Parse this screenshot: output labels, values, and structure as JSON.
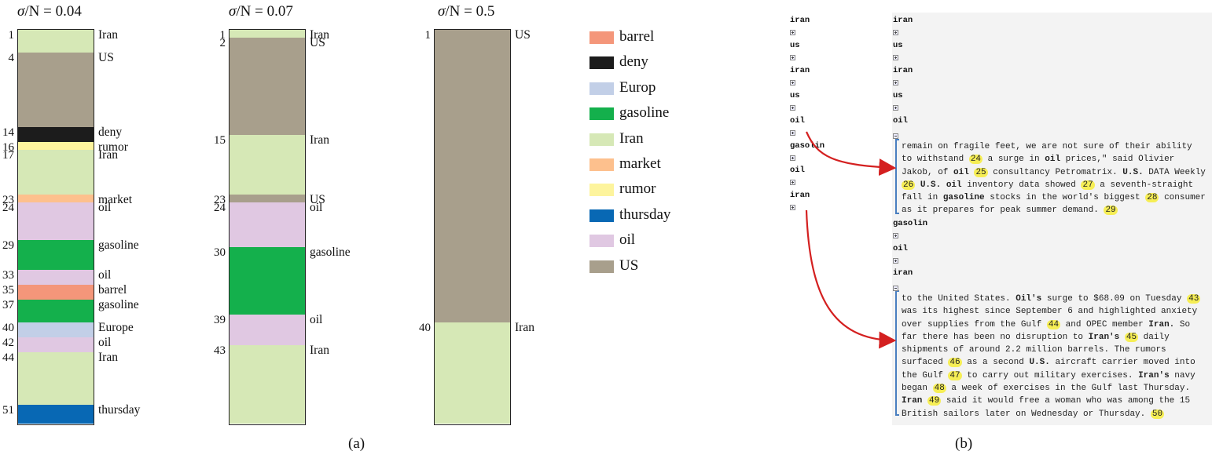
{
  "panel_a": {
    "columns": [
      {
        "title_sym": "σ",
        "title_rest": "/N = 0.04",
        "segments": [
          {
            "start": 1,
            "label": "Iran",
            "color": "#d6e8b6"
          },
          {
            "start": 4,
            "label": "US",
            "color": "#a89f8c"
          },
          {
            "start": 14,
            "label": "deny",
            "color": "#1c1c1c"
          },
          {
            "start": 16,
            "label": "rumor",
            "color": "#fdf49d"
          },
          {
            "start": 17,
            "label": "Iran",
            "color": "#d6e8b6"
          },
          {
            "start": 23,
            "label": "market",
            "color": "#fdc08d"
          },
          {
            "start": 24,
            "label": "oil",
            "color": "#e0c8e2"
          },
          {
            "start": 29,
            "label": "gasoline",
            "color": "#14b04c"
          },
          {
            "start": 33,
            "label": "oil",
            "color": "#e0c8e2"
          },
          {
            "start": 35,
            "label": "barrel",
            "color": "#f4967a"
          },
          {
            "start": 37,
            "label": "gasoline",
            "color": "#14b04c"
          },
          {
            "start": 40,
            "label": "Europe",
            "color": "#c2cfe7"
          },
          {
            "start": 42,
            "label": "oil",
            "color": "#e0c8e2"
          },
          {
            "start": 44,
            "label": "Iran",
            "color": "#d6e8b6"
          },
          {
            "start": 51,
            "label": "thursday",
            "color": "#0868b4"
          }
        ]
      },
      {
        "title_sym": "σ",
        "title_rest": "/N = 0.07",
        "segments": [
          {
            "start": 1,
            "label": "Iran",
            "color": "#d6e8b6"
          },
          {
            "start": 2,
            "label": "US",
            "color": "#a89f8c"
          },
          {
            "start": 15,
            "label": "Iran",
            "color": "#d6e8b6"
          },
          {
            "start": 23,
            "label": "US",
            "color": "#a89f8c"
          },
          {
            "start": 24,
            "label": "oil",
            "color": "#e0c8e2"
          },
          {
            "start": 30,
            "label": "gasoline",
            "color": "#14b04c"
          },
          {
            "start": 39,
            "label": "oil",
            "color": "#e0c8e2"
          },
          {
            "start": 43,
            "label": "Iran",
            "color": "#d6e8b6"
          }
        ]
      },
      {
        "title_sym": "σ",
        "title_rest": "/N = 0.5",
        "segments": [
          {
            "start": 1,
            "label": "US",
            "color": "#a89f8c"
          },
          {
            "start": 40,
            "label": "Iran",
            "color": "#d6e8b6"
          }
        ]
      }
    ],
    "legend": [
      {
        "label": "barrel",
        "color": "#f4967a"
      },
      {
        "label": "deny",
        "color": "#1c1c1c"
      },
      {
        "label": "Europ",
        "color": "#c2cfe7"
      },
      {
        "label": "gasoline",
        "color": "#14b04c"
      },
      {
        "label": "Iran",
        "color": "#d6e8b6"
      },
      {
        "label": "market",
        "color": "#fdc08d"
      },
      {
        "label": "rumor",
        "color": "#fdf49d"
      },
      {
        "label": "thursday",
        "color": "#0868b4"
      },
      {
        "label": "oil",
        "color": "#e0c8e2"
      },
      {
        "label": "US",
        "color": "#a89f8c"
      }
    ],
    "caption": "(a)"
  },
  "panel_b": {
    "left_tree": [
      "iran",
      "us",
      "iran",
      "us",
      "oil",
      "gasolin",
      "oil",
      "iran"
    ],
    "right_tree_top": [
      "iran",
      "us",
      "iran",
      "us",
      "oil"
    ],
    "snippet1": [
      [
        {
          "t": "remain on fragile feet, we are not sure of their ability"
        }
      ],
      [
        {
          "t": "to withstand "
        },
        {
          "h": "24"
        },
        {
          "t": " a surge in "
        },
        {
          "b": "oil"
        },
        {
          "t": " prices,\" said Olivier"
        }
      ],
      [
        {
          "t": "Jakob, of "
        },
        {
          "b": "oil"
        },
        {
          "t": " "
        },
        {
          "h": "25"
        },
        {
          "t": " consultancy Petromatrix. "
        },
        {
          "b": "U.S."
        },
        {
          "t": " DATA Weekly"
        }
      ],
      [
        {
          "h": "26"
        },
        {
          "t": " "
        },
        {
          "b": "U.S."
        },
        {
          "t": " "
        },
        {
          "b": "oil"
        },
        {
          "t": " inventory data showed "
        },
        {
          "h": "27"
        },
        {
          "t": " a seventh-straight"
        }
      ],
      [
        {
          "t": "fall in "
        },
        {
          "b": "gasoline"
        },
        {
          "t": " stocks in the world's biggest "
        },
        {
          "h": "28"
        },
        {
          "t": " consumer"
        }
      ],
      [
        {
          "t": "as it prepares for peak summer demand. "
        },
        {
          "h": "29"
        }
      ]
    ],
    "right_tree_mid": [
      "gasolin",
      "oil",
      "iran"
    ],
    "snippet2": [
      [
        {
          "t": "to the United States. "
        },
        {
          "b": "Oil's"
        },
        {
          "t": " surge to $68.09 on Tuesday "
        },
        {
          "h": "43"
        }
      ],
      [
        {
          "t": "was its highest since September 6 and highlighted anxiety"
        }
      ],
      [
        {
          "t": "over supplies from the Gulf "
        },
        {
          "h": "44"
        },
        {
          "t": " and OPEC member "
        },
        {
          "b": "Iran."
        },
        {
          "t": " So"
        }
      ],
      [
        {
          "t": "far there has been no disruption to "
        },
        {
          "b": "Iran's"
        },
        {
          "t": " "
        },
        {
          "h": "45"
        },
        {
          "t": " daily"
        }
      ],
      [
        {
          "t": "shipments of around 2.2 million barrels. The rumors"
        }
      ],
      [
        {
          "t": "surfaced "
        },
        {
          "h": "46"
        },
        {
          "t": " as a second "
        },
        {
          "b": "U.S."
        },
        {
          "t": " aircraft carrier moved into"
        }
      ],
      [
        {
          "t": "the Gulf "
        },
        {
          "h": "47"
        },
        {
          "t": " to carry out military exercises. "
        },
        {
          "b": "Iran's"
        },
        {
          "t": " navy"
        }
      ],
      [
        {
          "t": "began "
        },
        {
          "h": "48"
        },
        {
          "t": " a week of exercises in the Gulf last Thursday."
        }
      ],
      [
        {
          "b": "Iran"
        },
        {
          "t": " "
        },
        {
          "h": "49"
        },
        {
          "t": " said it would free a woman who was among the 15"
        }
      ],
      [
        {
          "t": "British sailors later on Wednesday or Thursday. "
        },
        {
          "h": "50"
        }
      ]
    ],
    "caption": "(b)"
  }
}
